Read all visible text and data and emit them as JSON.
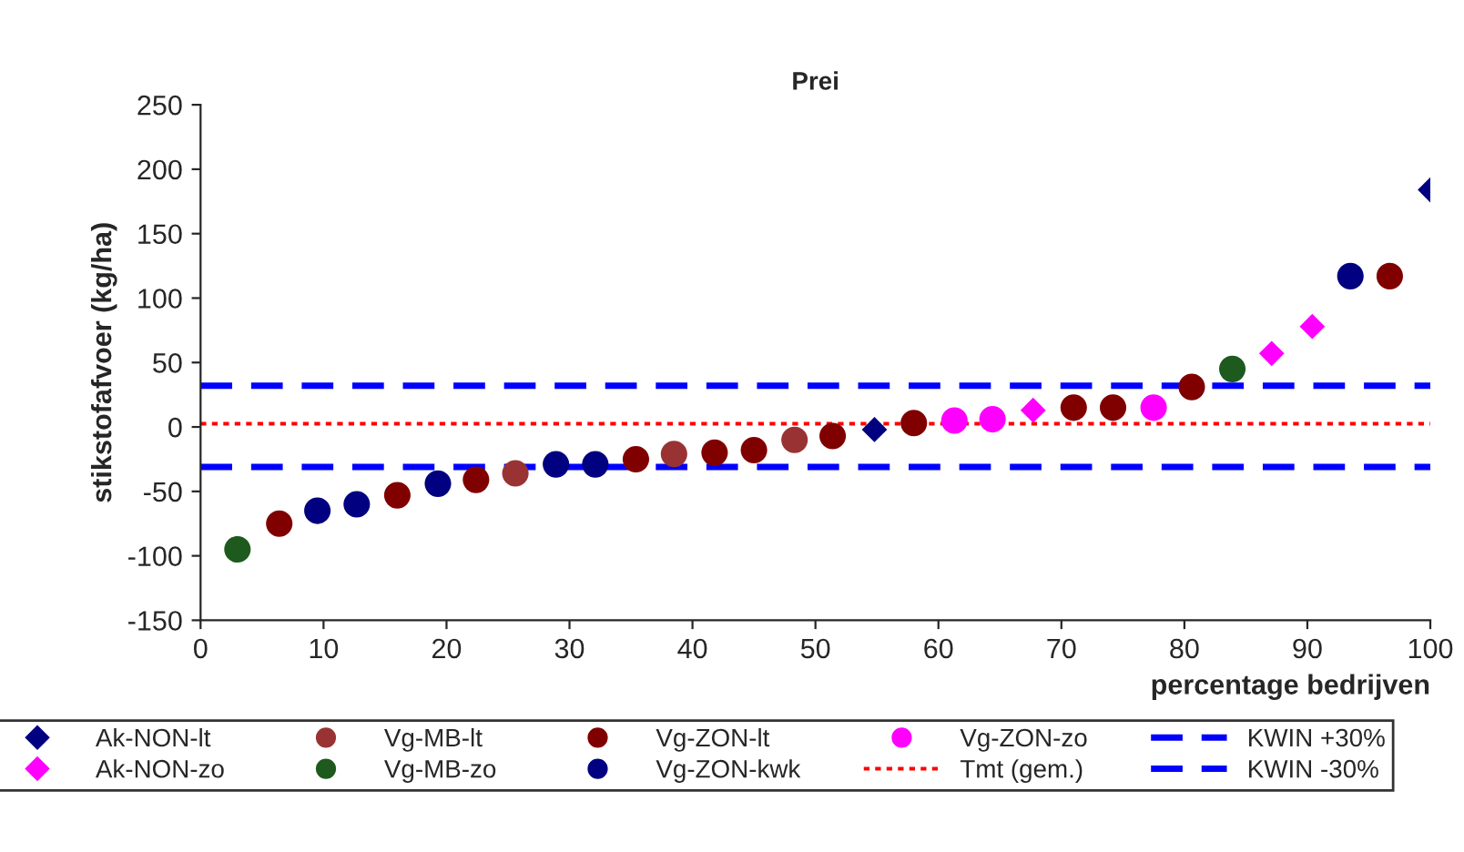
{
  "chart_data": {
    "type": "scatter",
    "title": "Prei",
    "xlabel": "percentage bedrijven",
    "ylabel": "stikstofafvoer (kg/ha)",
    "xlim": [
      0,
      100
    ],
    "xticks": [
      0,
      10,
      20,
      30,
      40,
      50,
      60,
      70,
      80,
      90,
      100
    ],
    "ylim": [
      -150,
      250
    ],
    "yticks": [
      -150,
      -100,
      -50,
      0,
      50,
      100,
      150,
      200,
      250
    ],
    "grid": false,
    "legend": "bottom",
    "series": [
      {
        "name": "Ak-NON-lt",
        "color": "#000080",
        "marker": "diamond",
        "x": [
          54.8,
          100
        ],
        "values": [
          -2,
          184
        ]
      },
      {
        "name": "Ak-NON-zo",
        "color": "#ff00ff",
        "marker": "diamond",
        "x": [
          67.7,
          87.1,
          90.4
        ],
        "values": [
          13,
          57,
          78
        ]
      },
      {
        "name": "Vg-MB-lt",
        "color": "#993333",
        "marker": "circle",
        "x": [
          25.6,
          38.5,
          48.3
        ],
        "values": [
          -36,
          -21,
          -10
        ]
      },
      {
        "name": "Vg-MB-zo",
        "color": "#1e5a1e",
        "marker": "circle",
        "x": [
          3.0,
          83.9
        ],
        "values": [
          -95,
          45
        ]
      },
      {
        "name": "Vg-ZON-lt",
        "color": "#800000",
        "marker": "circle",
        "x": [
          6.4,
          16,
          22.4,
          35.4,
          41.8,
          45,
          51.4,
          58,
          71,
          74.2,
          80.6,
          96.7
        ],
        "values": [
          -75,
          -53,
          -41,
          -25,
          -20,
          -18,
          -7,
          3,
          15,
          15,
          31,
          117
        ]
      },
      {
        "name": "Vg-ZON-kwk",
        "color": "#000080",
        "marker": "circle",
        "x": [
          9.5,
          12.7,
          19.3,
          28.9,
          32.1,
          93.5
        ],
        "values": [
          -65,
          -60,
          -44,
          -29,
          -29,
          117
        ]
      },
      {
        "name": "Vg-ZON-zo",
        "color": "#ff00ff",
        "marker": "circle",
        "x": [
          61.3,
          64.4,
          77.5
        ],
        "values": [
          5,
          6,
          15
        ]
      }
    ],
    "ref_lines": [
      {
        "axis": "y",
        "value": 2.5,
        "label": "Tmt (gem.)",
        "color": "#ff0000",
        "line_style": "dotted"
      },
      {
        "axis": "y",
        "value": 32,
        "label": "KWIN +30%",
        "color": "#0000ff",
        "line_style": "dashed"
      },
      {
        "axis": "y",
        "value": -31,
        "label": "KWIN -30%",
        "color": "#0000ff",
        "line_style": "dashed"
      }
    ]
  }
}
